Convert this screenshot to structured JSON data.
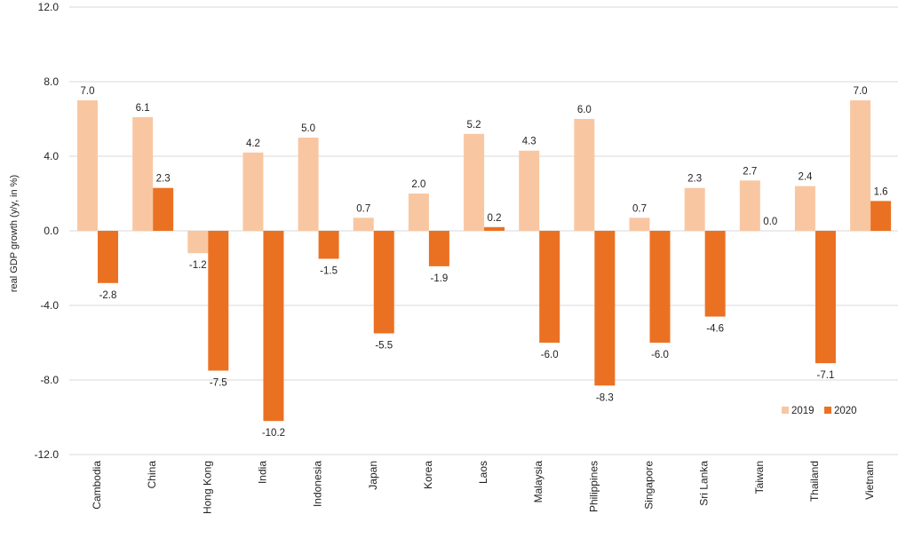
{
  "chart_data": {
    "type": "bar",
    "title": "",
    "xlabel": "",
    "ylabel": "real GDP growth (y/y, in %)",
    "ylim": [
      -12,
      12
    ],
    "yticks": [
      12,
      8,
      4,
      0,
      -4,
      -8,
      -12
    ],
    "ytick_labels": [
      "12.0",
      "8.0",
      "4.0",
      "0.0",
      "-4.0",
      "-8.0",
      "-12.0"
    ],
    "grid": true,
    "legend_position": "bottom-right",
    "categories": [
      "Cambodia",
      "China",
      "Hong Kong",
      "India",
      "Indonesia",
      "Japan",
      "Korea",
      "Laos",
      "Malaysia",
      "Philippines",
      "Singapore",
      "Sri Lanka",
      "Taiwan",
      "Thailand",
      "Vietnam"
    ],
    "series": [
      {
        "name": "2019",
        "color": "#f8c7a2",
        "values": [
          7.0,
          6.1,
          -1.2,
          4.2,
          5.0,
          0.7,
          2.0,
          5.2,
          4.3,
          6.0,
          0.7,
          2.3,
          2.7,
          2.4,
          7.0
        ],
        "labels": [
          "7.0",
          "6.1",
          "-1.2",
          "4.2",
          "5.0",
          "0.7",
          "2.0",
          "5.2",
          "4.3",
          "6.0",
          "0.7",
          "2.3",
          "2.7",
          "2.4",
          "7.0"
        ]
      },
      {
        "name": "2020",
        "color": "#eb7122",
        "values": [
          -2.8,
          2.3,
          -7.5,
          -10.2,
          -1.5,
          -5.5,
          -1.9,
          0.2,
          -6.0,
          -8.3,
          -6.0,
          -4.6,
          0.0,
          -7.1,
          1.6
        ],
        "labels": [
          "-2.8",
          "2.3",
          "-7.5",
          "-10.2",
          "-1.5",
          "-5.5",
          "-1.9",
          "0.2",
          "-6.0",
          "-8.3",
          "-6.0",
          "-4.6",
          "0.0",
          "-7.1",
          "1.6"
        ]
      }
    ]
  }
}
